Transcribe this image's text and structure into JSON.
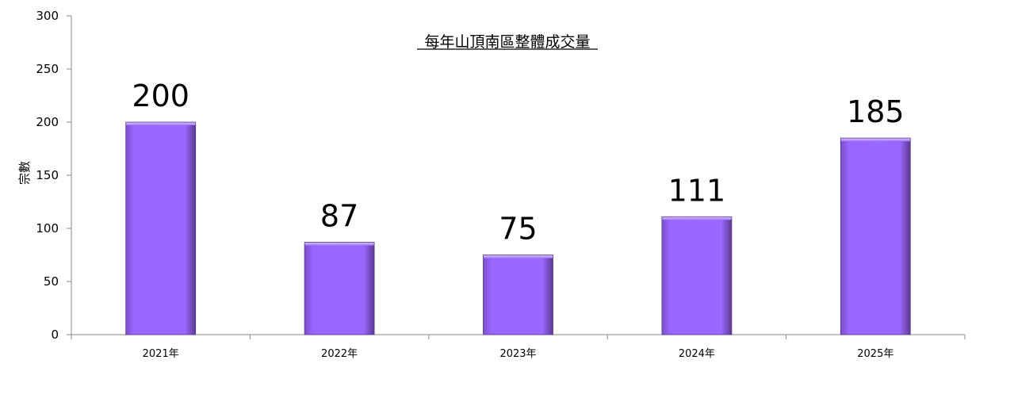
{
  "chart_data": {
    "type": "bar",
    "title": "每年山頂南區整體成交量",
    "xlabel": "",
    "ylabel": "宗數",
    "categories": [
      "2021年",
      "2022年",
      "2023年",
      "2024年",
      "2025年"
    ],
    "values": [
      200,
      87,
      75,
      111,
      185
    ],
    "data_labels": [
      "200",
      "87",
      "75",
      "111",
      "185"
    ],
    "ylim": [
      0,
      300
    ],
    "yticks": [
      0,
      50,
      100,
      150,
      200,
      250,
      300
    ],
    "ytick_labels": [
      "0",
      "50",
      "100",
      "150",
      "200",
      "250",
      "300"
    ],
    "grid": false,
    "legend": "none",
    "bar_color": "#9966ff",
    "bar_highlight_color": "#c9a8ff",
    "bar_shadow_color": "#5a3a8a",
    "axis_color": "#888888"
  }
}
